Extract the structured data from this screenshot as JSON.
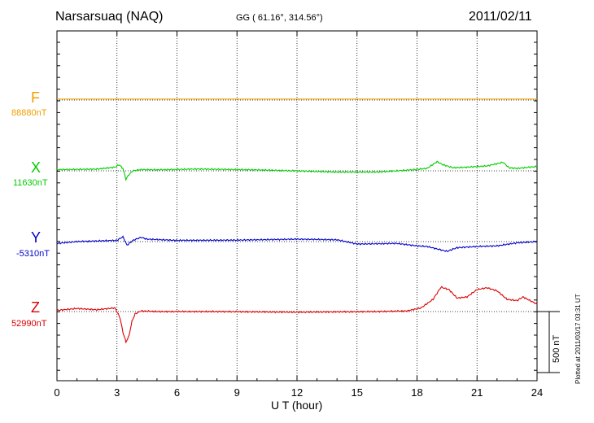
{
  "header": {
    "station": "Narsarsuaq (NAQ)",
    "coords": "GG ( 61.16°, 314.56°)",
    "date": "2011/02/11"
  },
  "plotted_note": "Plotted at 2011/03/17 03:31  UT",
  "scale_label": "500 nT",
  "colors": {
    "F": "#f0a000",
    "X": "#00cc00",
    "Y": "#0000cc",
    "Z": "#dd0000"
  },
  "chart_data": {
    "type": "line",
    "xlabel": "U T (hour)",
    "xlim": [
      0,
      24
    ],
    "xticks": [
      0,
      3,
      6,
      9,
      12,
      15,
      18,
      21,
      24
    ],
    "scale_bar_nT": 500,
    "series": [
      {
        "name": "F",
        "baseline_label": "88880nT",
        "color": "#f0a000",
        "x": [
          0,
          24
        ],
        "y": [
          8,
          8
        ]
      },
      {
        "name": "X",
        "baseline_label": "11630nT",
        "color": "#00cc00",
        "x": [
          0,
          1,
          2,
          2.9,
          3.1,
          3.3,
          3.45,
          3.6,
          3.8,
          4.2,
          5,
          7,
          10,
          14,
          16,
          17.5,
          18.5,
          19,
          19.3,
          19.8,
          20.5,
          21.5,
          22.3,
          22.6,
          23,
          24
        ],
        "y": [
          10,
          12,
          14,
          30,
          50,
          20,
          -70,
          -30,
          0,
          10,
          8,
          15,
          8,
          -10,
          -10,
          5,
          20,
          75,
          50,
          25,
          30,
          40,
          70,
          25,
          20,
          35
        ]
      },
      {
        "name": "Y",
        "baseline_label": "-5310nT",
        "color": "#0000cc",
        "x": [
          0,
          1,
          2,
          3,
          3.3,
          3.5,
          3.8,
          4.2,
          4.5,
          6,
          9,
          12,
          14,
          15,
          17,
          18,
          18.5,
          19,
          19.5,
          20,
          21,
          22,
          23,
          24
        ],
        "y": [
          -15,
          0,
          5,
          10,
          40,
          -30,
          10,
          35,
          20,
          10,
          12,
          20,
          15,
          -20,
          -15,
          -35,
          -40,
          -60,
          -80,
          -50,
          -40,
          -35,
          -10,
          0
        ]
      },
      {
        "name": "Z",
        "baseline_label": "52990nT",
        "color": "#dd0000",
        "x": [
          0,
          1,
          2,
          2.9,
          3.15,
          3.3,
          3.45,
          3.6,
          3.75,
          3.9,
          4.2,
          5,
          8,
          12,
          16,
          17.5,
          18.2,
          18.8,
          19.2,
          19.6,
          20,
          20.5,
          21,
          21.5,
          22,
          22.5,
          23,
          23.3,
          24
        ],
        "y": [
          10,
          25,
          15,
          30,
          -50,
          -170,
          -250,
          -200,
          -80,
          -20,
          5,
          0,
          0,
          -5,
          0,
          5,
          30,
          100,
          200,
          180,
          110,
          120,
          180,
          195,
          170,
          100,
          90,
          120,
          60
        ]
      }
    ]
  }
}
